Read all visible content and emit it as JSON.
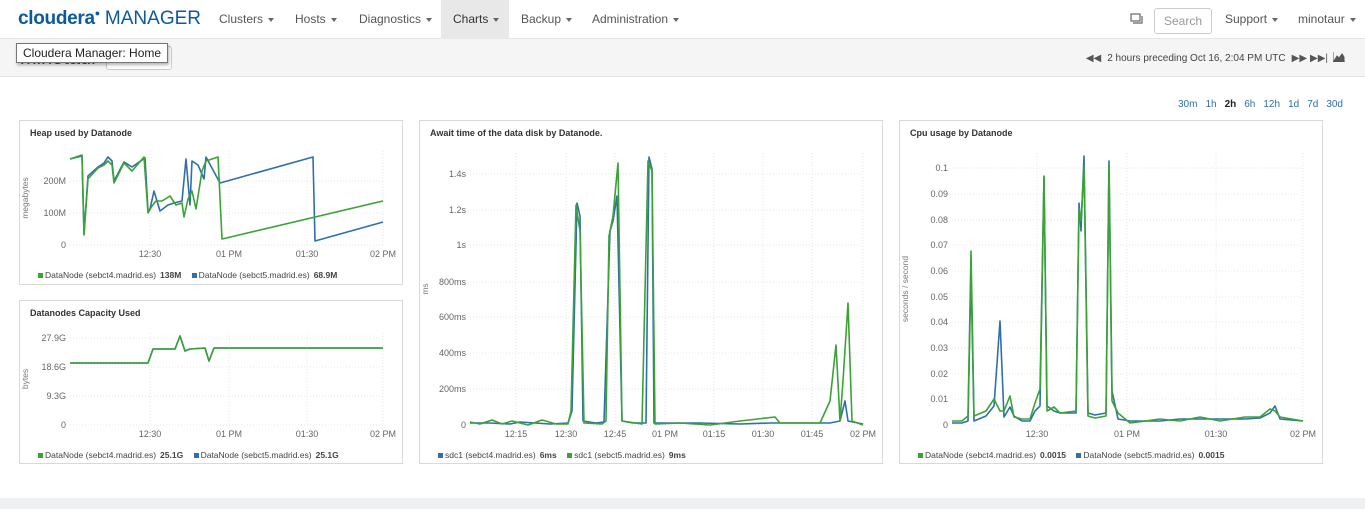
{
  "header": {
    "logo_brand": "cloudera",
    "logo_product": "MANAGER",
    "tooltip": "Cloudera Manager: Home",
    "nav": [
      {
        "label": "Clusters"
      },
      {
        "label": "Hosts"
      },
      {
        "label": "Diagnostics"
      },
      {
        "label": "Charts"
      },
      {
        "label": "Backup"
      },
      {
        "label": "Administration"
      }
    ],
    "search_placeholder": "Search",
    "support": "Support",
    "user": "minotaur",
    "brand_color": "#0b5aa0"
  },
  "page": {
    "title": "minotaur",
    "time_range": "2 hours preceding Oct 16, 2:04 PM UTC",
    "spans": [
      "30m",
      "1h",
      "2h",
      "6h",
      "12h",
      "1d",
      "7d",
      "30d"
    ],
    "selected_span": "2h"
  },
  "colors": {
    "green": "#3aa334",
    "blue": "#2f6fab"
  },
  "charts": {
    "heap": {
      "title": "Heap used by Datanode",
      "ylabel": "megabytes",
      "yticks": [
        "200M",
        "100M",
        "0"
      ],
      "xticks": [
        "12:30",
        "01 PM",
        "01:30",
        "02 PM"
      ],
      "legend": [
        {
          "name": "DataNode (sebct4.madrid.es)",
          "value": "138M",
          "color": "#3aa334"
        },
        {
          "name": "DataNode (sebct5.madrid.es)",
          "value": "68.9M",
          "color": "#2f6fab"
        }
      ]
    },
    "capacity": {
      "title": "Datanodes Capacity Used",
      "ylabel": "bytes",
      "yticks": [
        "27.9G",
        "18.6G",
        "9.3G",
        "0"
      ],
      "xticks": [
        "12:30",
        "01 PM",
        "01:30",
        "02 PM"
      ],
      "legend": [
        {
          "name": "DataNode (sebct4.madrid.es)",
          "value": "25.1G",
          "color": "#3aa334"
        },
        {
          "name": "DataNode (sebct5.madrid.es)",
          "value": "25.1G",
          "color": "#2f6fab"
        }
      ]
    },
    "await": {
      "title": "Await time of the data disk by Datanode.",
      "ylabel": "ms",
      "yticks": [
        "1.4s",
        "1.2s",
        "1s",
        "800ms",
        "600ms",
        "400ms",
        "200ms",
        "0"
      ],
      "xticks": [
        "12:15",
        "12:30",
        "12:45",
        "01 PM",
        "01:15",
        "01:30",
        "01:45",
        "02 PM"
      ],
      "legend": [
        {
          "name": "sdc1 (sebct4.madrid.es)",
          "value": "6ms",
          "color": "#2f6fab"
        },
        {
          "name": "sdc1 (sebct5.madrid.es)",
          "value": "9ms",
          "color": "#3aa334"
        }
      ]
    },
    "cpu": {
      "title": "Cpu usage by Datanode",
      "ylabel": "seconds / second",
      "yticks": [
        "0.1",
        "0.09",
        "0.08",
        "0.07",
        "0.06",
        "0.05",
        "0.04",
        "0.03",
        "0.02",
        "0.01",
        "0"
      ],
      "xticks": [
        "12:30",
        "01 PM",
        "01:30",
        "02 PM"
      ],
      "legend": [
        {
          "name": "DataNode (sebct4.madrid.es)",
          "value": "0.0015",
          "color": "#3aa334"
        },
        {
          "name": "DataNode (sebct5.madrid.es)",
          "value": "0.0015",
          "color": "#2f6fab"
        }
      ]
    }
  }
}
